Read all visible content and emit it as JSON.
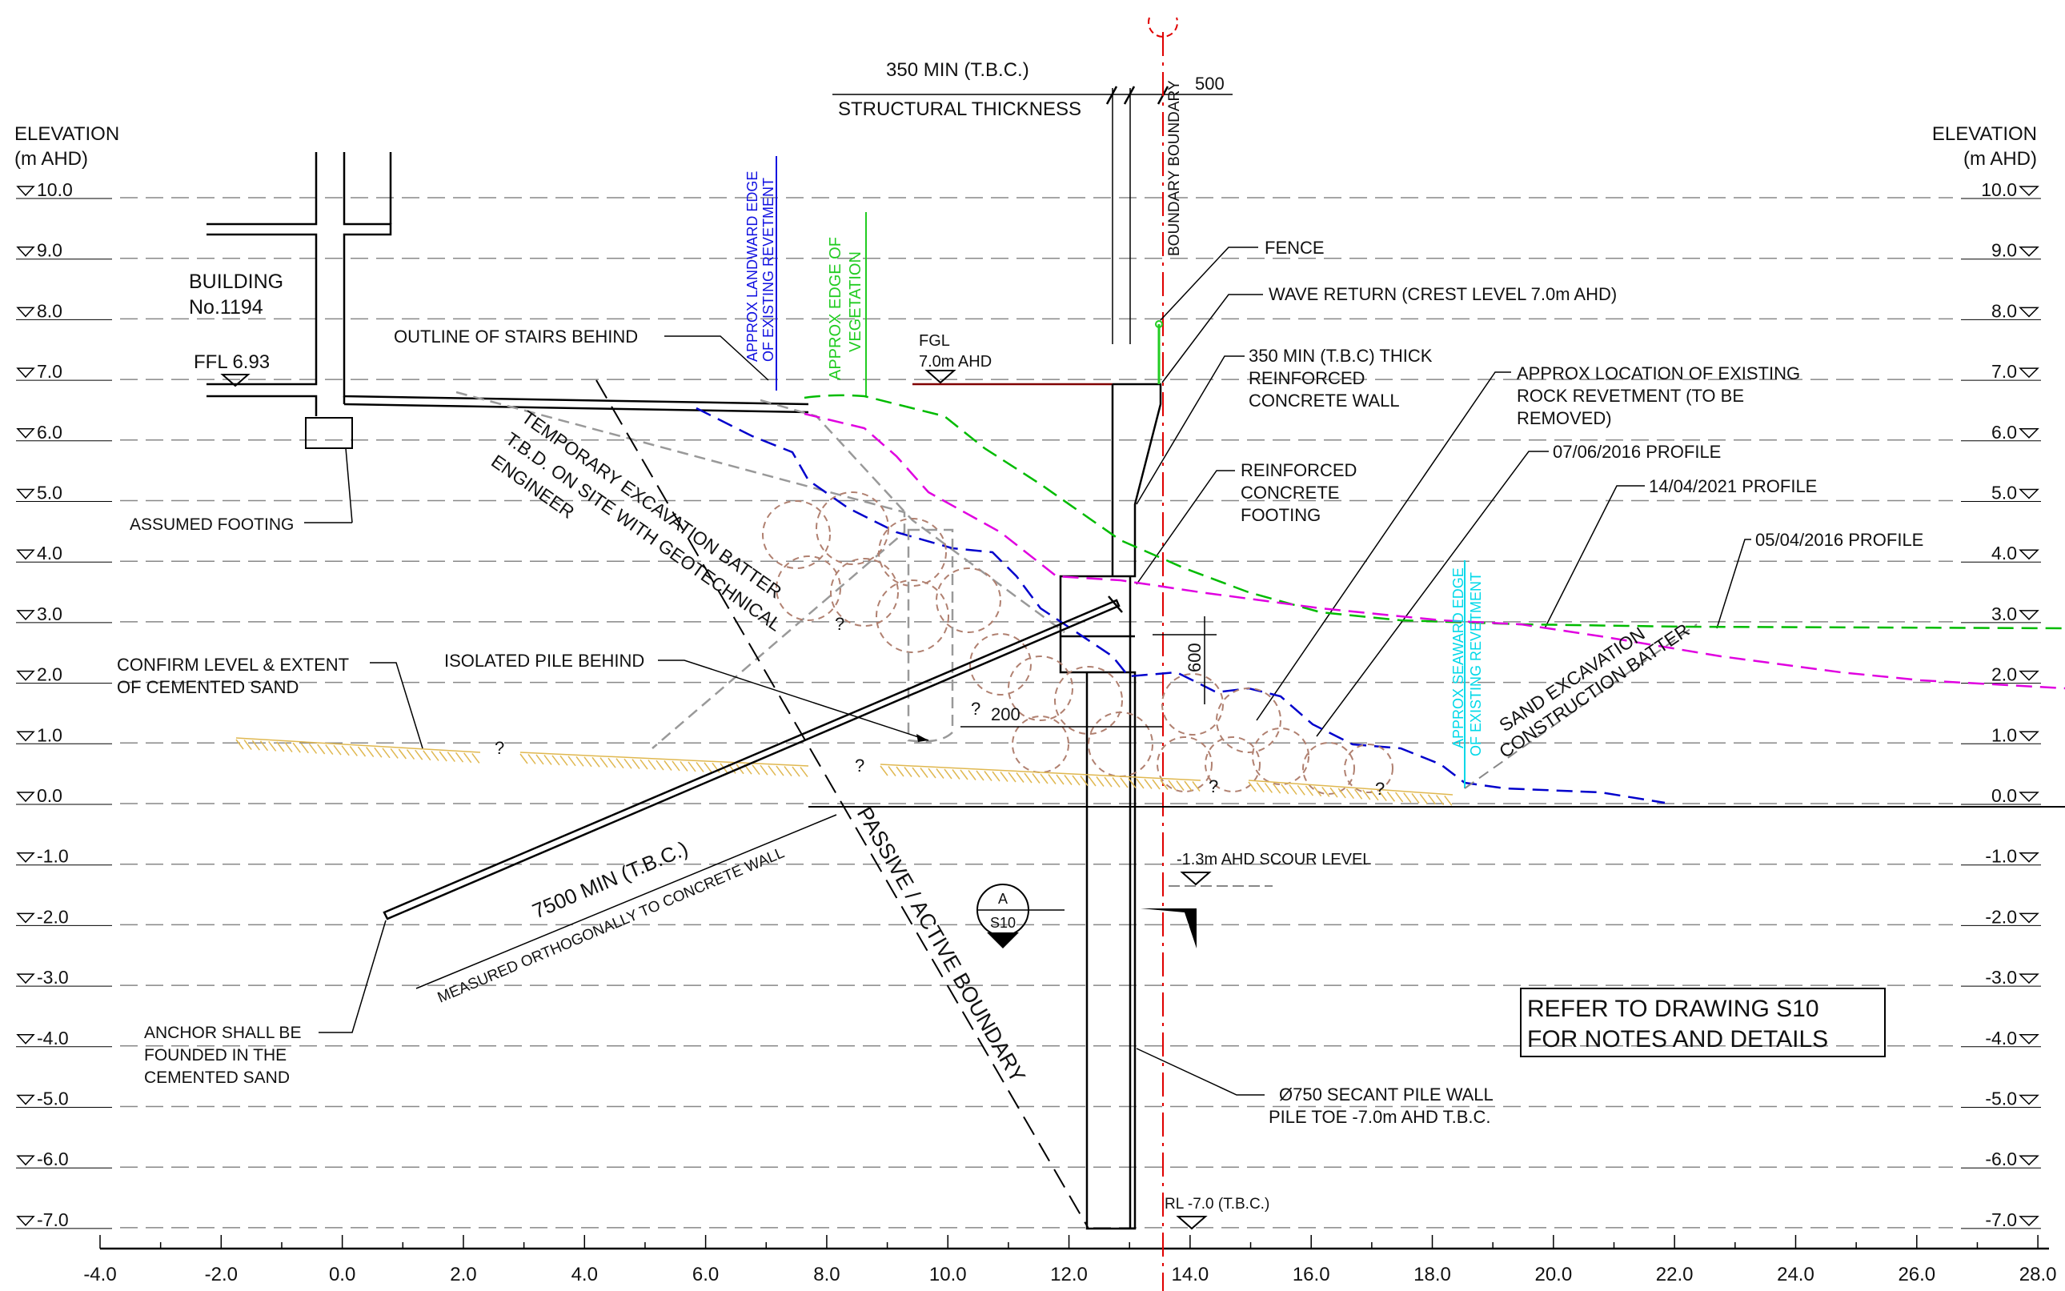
{
  "elevation_axis": {
    "title_line1": "ELEVATION",
    "title_line2": "(m AHD)",
    "levels": [
      "10.0",
      "9.0",
      "8.0",
      "7.0",
      "6.0",
      "5.0",
      "4.0",
      "3.0",
      "2.0",
      "1.0",
      "0.0",
      "-1.0",
      "-2.0",
      "-3.0",
      "-4.0",
      "-5.0",
      "-6.0",
      "-7.0"
    ]
  },
  "chainage_axis": {
    "labels": [
      "-4.0",
      "-2.0",
      "0.0",
      "2.0",
      "4.0",
      "6.0",
      "8.0",
      "10.0",
      "12.0",
      "14.0",
      "16.0",
      "18.0",
      "20.0",
      "22.0",
      "24.0",
      "26.0",
      "28.0"
    ]
  },
  "header": {
    "thickness_label": "350 MIN  (T.B.C.)",
    "thickness_sub": "STRUCTURAL THICKNESS",
    "offset_label": "500",
    "boundary_label": "BOUNDARY BOUNDARY"
  },
  "building": {
    "name_line1": "BUILDING",
    "name_line2": "No.1194",
    "ffl": "FFL 6.93",
    "footing": "ASSUMED FOOTING"
  },
  "annotations": {
    "stairs": "OUTLINE OF STAIRS BEHIND",
    "landward_edge_1": "APPROX LANDWARD EDGE",
    "landward_edge_2": "OF EXISTING REVETMENT",
    "vegetation_1": "APPROX EDGE OF",
    "vegetation_2": "VEGETATION",
    "fgl_1": "FGL",
    "fgl_2": "7.0m AHD",
    "fence": "FENCE",
    "wave_return": "WAVE RETURN (CREST LEVEL 7.0m AHD)",
    "wall_1": "350 MIN (T.B.C) THICK",
    "wall_2": "REINFORCED",
    "wall_3": "CONCRETE WALL",
    "rock_1": "APPROX LOCATION OF EXISTING",
    "rock_2": "ROCK REVETMENT (TO BE",
    "rock_3": "REMOVED)",
    "footing_1": "REINFORCED",
    "footing_2": "CONCRETE",
    "footing_3": "FOOTING",
    "profile_2016_06": "07/06/2016 PROFILE",
    "profile_2021": "14/04/2021 PROFILE",
    "profile_2016_04": "05/04/2016 PROFILE",
    "temp_batter_1": "TEMPORARY EXCAVATION BATTER",
    "temp_batter_2": "T.B.D. ON SITE WITH GEOTECHNICAL",
    "temp_batter_3": "ENGINEER",
    "confirm_1": "CONFIRM LEVEL & EXTENT",
    "confirm_2": "OF CEMENTED SAND",
    "isolated_pile": "ISOLATED PILE BEHIND",
    "dim_200": "200",
    "dim_600": "600",
    "seaward_1": "APPROX SEAWARD EDGE",
    "seaward_2": "OF EXISTING REVETMENT",
    "sand_batter_1": "SAND EXCAVATION",
    "sand_batter_2": "CONSTRUCTION BATTER",
    "question": "?",
    "scour": "-1.3m AHD SCOUR LEVEL",
    "anchor_length": "7500 MIN  (T.B.C.)",
    "measured": "MEASURED ORTHOGONALLY TO CONCRETE WALL",
    "passive_active": "PASSIVE / ACTIVE BOUNDARY",
    "section_letter": "A",
    "section_sheet": "S10",
    "anchor_1": "ANCHOR SHALL BE",
    "anchor_2": "FOUNDED IN THE",
    "anchor_3": "CEMENTED SAND",
    "pile_1": "Ø750 SECANT PILE WALL",
    "pile_2": "PILE TOE -7.0m AHD T.B.C.",
    "rl": "RL -7.0 (T.B.C.)",
    "refer_1": "REFER TO DRAWING S10",
    "refer_2": "FOR NOTES AND DETAILS"
  },
  "colors": {
    "profile_2021": "#00bb00",
    "profile_2016_06": "#e000e0",
    "profile_2016_04": "#0000cc",
    "landward_edge": "#1010e0",
    "vegetation": "#22cc22",
    "seaward_edge": "#00d8e8",
    "boundary": "#e00000",
    "rock": "#b08070",
    "cemented_sand": "#e0b850"
  }
}
